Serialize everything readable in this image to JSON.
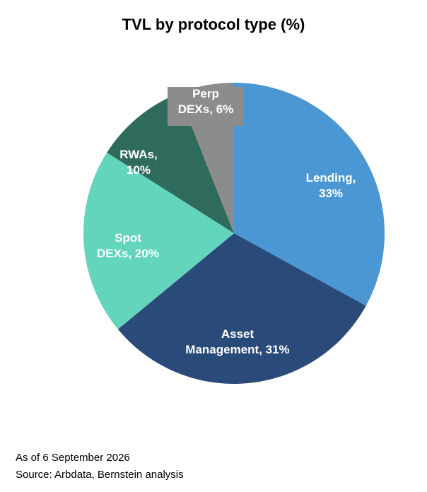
{
  "chart_data": {
    "type": "pie",
    "title": "TVL by protocol type (%)",
    "start_angle_deg": 0,
    "direction": "clockwise",
    "slices": [
      {
        "name": "Lending",
        "label_lines": [
          "Lending,",
          "33%"
        ],
        "value": 33,
        "color": "#4a97d3"
      },
      {
        "name": "Asset Management",
        "label_lines": [
          "Asset",
          "Management, 31%"
        ],
        "value": 31,
        "color": "#2a4a7a"
      },
      {
        "name": "Spot DEXs",
        "label_lines": [
          "Spot",
          "DEXs, 20%"
        ],
        "value": 20,
        "color": "#63d5bd"
      },
      {
        "name": "RWAs",
        "label_lines": [
          "RWAs,",
          "10%"
        ],
        "value": 10,
        "color": "#2e6b5c"
      },
      {
        "name": "Perp DEXs",
        "label_lines": [
          "Perp",
          "DEXs, 6%"
        ],
        "value": 6,
        "color": "#8c8c8c"
      }
    ]
  },
  "footnotes": {
    "date": "As of 6 September 2026",
    "source": "Source: Arbdata, Bernstein analysis"
  }
}
